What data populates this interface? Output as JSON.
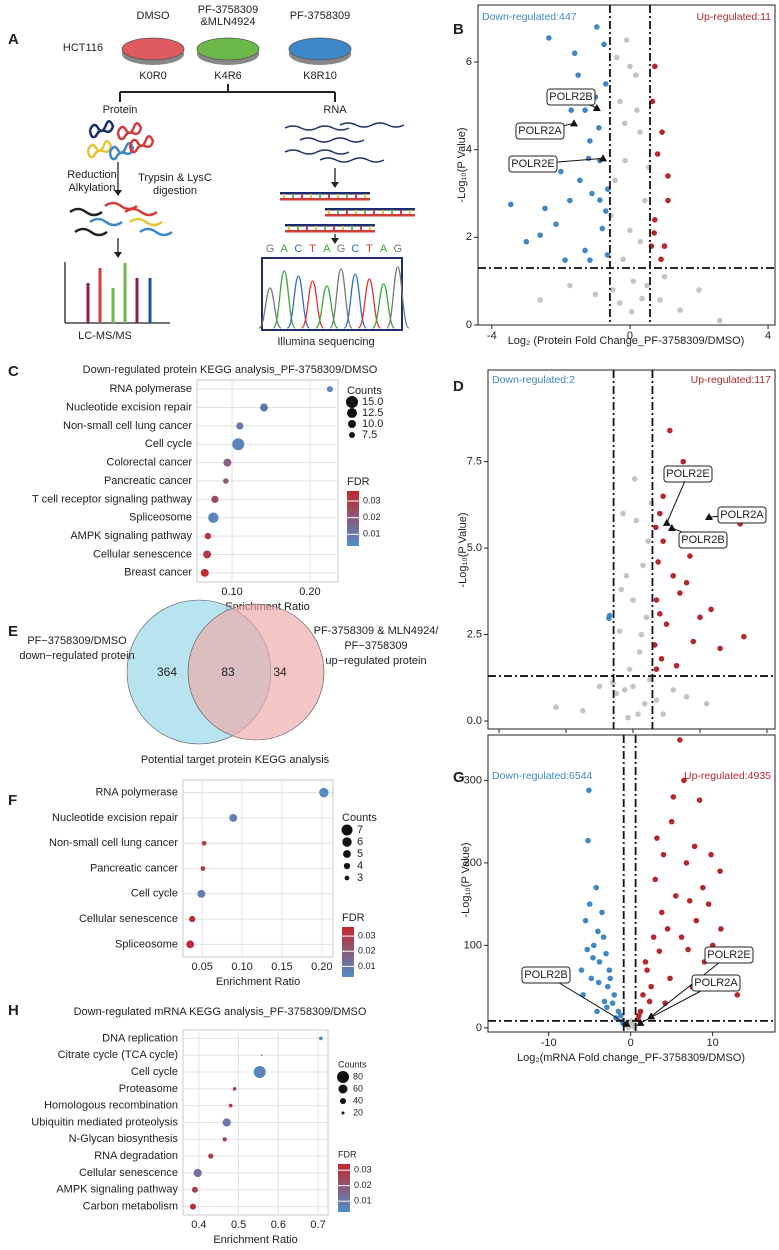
{
  "diagram": {
    "panel": "A",
    "treatments": [
      [
        "DMSO"
      ],
      [
        "PF-3758309",
        "&MLN4924"
      ],
      [
        "PF-3758309"
      ]
    ],
    "cell_line": "HCT116",
    "labels": [
      "K0R0",
      "K4R6",
      "K8R10"
    ],
    "protein": "Protein",
    "rna": "RNA",
    "step_left": [
      "Reduction",
      "Alkylation"
    ],
    "step_right": [
      "Trypsin & LysC",
      "digestion"
    ],
    "protein_method": "LC-MS/MS",
    "rna_method": "Illumina sequencing",
    "sequence": [
      "G",
      "A",
      "C",
      "T",
      "A",
      "G",
      "C",
      "T",
      "A",
      "G"
    ]
  },
  "chart_data": [
    {
      "type": "scatter",
      "panel": "B",
      "xlabel": "Log₂ (Protein Fold Change_PF-3758309/DMSO)",
      "ylabel": "-Log₁₀(P Value)",
      "xlim": [
        -4.4,
        4.2
      ],
      "ylim": [
        0,
        7.3
      ],
      "xticks": [
        -4,
        0,
        4
      ],
      "yticks": [
        0,
        2,
        4,
        6
      ],
      "vlines": [
        -0.58,
        0.58
      ],
      "hline": 1.3,
      "annotations": [
        {
          "text": "Down-regulated:447",
          "color": "#3f88c5"
        },
        {
          "text": "Up-regulated:11",
          "color": "#b3282d"
        }
      ],
      "series": [
        {
          "color": "#c4c4c4",
          "x": [
            -0.1,
            -0.38,
            0.17,
            -0.29,
            0.29,
            -0.14,
            -0.43,
            0.43,
            0.0,
            -0.2,
            0.1,
            0.35,
            -0.5,
            0.5,
            0.05,
            -0.3,
            0.2,
            -2.6,
            2.0,
            1.45,
            -1.74,
            0.87,
            2.6,
            -1.0,
            1.0,
            -0.55,
            0.55,
            0.0,
            -0.15,
            0.3
          ],
          "values": [
            6.5,
            6.1,
            5.7,
            5.1,
            4.4,
            3.75,
            3.3,
            2.84,
            2.16,
            1.5,
            1.0,
            0.6,
            0.8,
            0.9,
            0.3,
            0.5,
            4.9,
            0.57,
            0.8,
            0.34,
            0.9,
            0.57,
            0.1,
            0.7,
            1.1,
            2.5,
            3.6,
            5.9,
            4.6,
            1.9
          ]
        },
        {
          "color": "#3f88c5",
          "x": [
            -3.45,
            -3.0,
            -2.35,
            -1.6,
            -0.96,
            -0.75,
            -1.5,
            -2.46,
            -2.14,
            -2.0,
            -1.7,
            -1.16,
            -0.87,
            -1.3,
            -1.0,
            -0.64,
            -1.74,
            -1.45,
            -1.88,
            -1.16,
            -2.6,
            -0.87,
            -1.3,
            -0.7,
            -0.8,
            -1.1,
            -0.65,
            -0.9,
            -1.2,
            -0.7
          ],
          "values": [
            2.75,
            1.9,
            6.55,
            6.2,
            6.8,
            6.4,
            5.7,
            2.66,
            2.3,
            3.5,
            4.9,
            4.2,
            2.85,
            1.7,
            5.2,
            3.1,
            2.84,
            3.3,
            1.48,
            1.48,
            2.05,
            3.75,
            4.9,
            5.5,
            2.2,
            3.0,
            1.6,
            4.5,
            3.8,
            2.6
          ]
        },
        {
          "color": "#b3282d",
          "x": [
            0.72,
            0.93,
            1.1,
            0.72,
            0.62,
            1.0,
            1.1,
            0.8,
            0.65,
            0.9,
            0.7
          ],
          "values": [
            5.9,
            4.4,
            3.4,
            2.4,
            1.8,
            1.8,
            2.84,
            3.9,
            5.1,
            1.5,
            2.1
          ]
        }
      ],
      "labels": [
        {
          "text": "POLR2B",
          "x": -0.96,
          "y": 4.95
        },
        {
          "text": "POLR2A",
          "x": -1.62,
          "y": 4.6
        },
        {
          "text": "POLR2E",
          "x": -0.78,
          "y": 3.8
        }
      ]
    },
    {
      "type": "dot",
      "panel": "C",
      "title": "Down-regulated protein KEGG analysis_PF-3758309/DMSO",
      "categories": [
        "RNA polymerase",
        "Nucleotide excision repair",
        "Non-small cell lung cancer",
        "Cell cycle",
        "Colorectal cancer",
        "Pancreatic cancer",
        "T cell receptor signaling pathway",
        "Spliceosome",
        "AMPK signaling pathway",
        "Cellular senescence",
        "Breast cancer"
      ],
      "values": [
        0.2256,
        0.141,
        0.11,
        0.108,
        0.094,
        0.092,
        0.078,
        0.076,
        0.069,
        0.068,
        0.065
      ],
      "counts": [
        7.5,
        10,
        9,
        15,
        10,
        7,
        9,
        13,
        8,
        10,
        10
      ],
      "fdr": [
        0.006,
        0.01,
        0.01,
        0.006,
        0.018,
        0.02,
        0.025,
        0.006,
        0.032,
        0.03,
        0.034
      ],
      "xlabel": "Enrichment Ratio",
      "xlim": [
        0.055,
        0.236
      ],
      "xticks": [
        {
          "value": 0.1,
          "label": "0.10"
        },
        {
          "value": 0.2,
          "label": "0.20"
        }
      ],
      "size_legend": {
        "title": "Counts",
        "values": [
          {
            "value": 15,
            "label": "15.0"
          },
          12.5,
          {
            "value": 10,
            "label": "10.0"
          },
          7.5
        ]
      },
      "color_legend": {
        "title": "FDR",
        "lim": [
          0.003,
          0.036
        ],
        "ticks": [
          0.01,
          0.02,
          0.03
        ],
        "colors": [
          "#4f8fca",
          "#c3272b"
        ]
      }
    },
    {
      "type": "scatter",
      "panel": "D",
      "xlabel": [
        "Log₂ (Protein Fold change_PF-3758309",
        "&MLN4924/PF-3758309)"
      ],
      "ylabel": "-Log₁₀(P Value)",
      "xlim": [
        -4.33,
        4.24
      ],
      "ylim": [
        -0.23,
        10.15
      ],
      "xticks": [
        -4,
        -2,
        0,
        2,
        4
      ],
      "yticks": [
        {
          "value": 0,
          "label": "0.0"
        },
        2.5,
        {
          "value": 5,
          "label": "5.0"
        },
        7.5
      ],
      "vlines": [
        -0.58,
        0.58
      ],
      "hline": 1.3,
      "annotations": [
        {
          "text": "Down-regulated:2",
          "color": "#3f88c5"
        },
        {
          "text": "Up-regulated:117",
          "color": "#b3282d"
        }
      ],
      "series": [
        {
          "color": "#c4c4c4",
          "x": [
            -0.3,
            0.1,
            0.3,
            -0.2,
            0.0,
            0.4,
            -0.4,
            0.2,
            -0.1,
            0.5,
            -0.5,
            0.35,
            0.15,
            -0.25,
            0.05,
            -1.5,
            1.2,
            2.2,
            -1.0,
            0.9,
            -2.3,
            1.6,
            -0.6,
            0.7,
            0.45,
            -0.35,
            0.25,
            0.0,
            -0.15,
            0.55
          ],
          "values": [
            6.0,
            5.8,
            4.5,
            4.2,
            3.5,
            3.0,
            2.6,
            2.0,
            1.5,
            1.2,
            0.8,
            0.5,
            0.2,
            0.9,
            7.0,
            0.3,
            0.9,
            0.5,
            1.0,
            0.2,
            0.4,
            0.7,
            1.1,
            0.6,
            5.2,
            3.8,
            2.5,
            1.0,
            0.1,
            6.3
          ]
        },
        {
          "color": "#3f88c5",
          "x": [
            -0.72,
            -0.7
          ],
          "values": [
            2.97,
            3.05
          ]
        },
        {
          "color": "#b3282d",
          "x": [
            1.1,
            1.7,
            2.33,
            3.31,
            3.2,
            1.5,
            0.8,
            0.9,
            1.2,
            0.7,
            0.65,
            1.0,
            1.4,
            0.75,
            0.85,
            1.8,
            2.0,
            1.3,
            0.7,
            0.9,
            1.6,
            0.68,
            1.05,
            2.6,
            0.8
          ],
          "values": [
            8.4,
            4.77,
            3.23,
            2.44,
            5.7,
            7.5,
            6.0,
            5.2,
            4.2,
            3.5,
            2.2,
            2.8,
            3.7,
            4.6,
            1.8,
            2.3,
            3.0,
            1.6,
            1.5,
            6.5,
            4.0,
            5.6,
            7.0,
            2.1,
            3.1
          ]
        }
      ],
      "labels": [
        {
          "text": "POLR2E",
          "x": 1.01,
          "y": 5.73
        },
        {
          "text": "POLR2A",
          "x": 2.27,
          "y": 5.9
        },
        {
          "text": "POLR2B",
          "x": 1.16,
          "y": 5.58
        }
      ]
    },
    {
      "type": "venn",
      "panel": "E",
      "sets": [
        {
          "label": [
            "PF−3758309/DMSO",
            "down−regulated protein"
          ],
          "color": "#9fdbe8"
        },
        {
          "label": [
            "PF-3758309 & MLN4924/",
            "PF−3758309",
            "up−regulated protein"
          ],
          "color": "#f0a7a7"
        }
      ],
      "values": [
        364,
        83,
        34
      ]
    },
    {
      "type": "dot",
      "panel": "F",
      "title": "Potential target protein KEGG analysis",
      "categories": [
        "RNA polymerase",
        "Nucleotide excision repair",
        "Non-small cell lung cancer",
        "Pancreatic cancer",
        "Cell cycle",
        "Cellular senescence",
        "Spliceosome"
      ],
      "values": [
        0.2025,
        0.089,
        0.0525,
        0.051,
        0.049,
        0.0375,
        0.035
      ],
      "counts": [
        6,
        5,
        3,
        3,
        5,
        4,
        5
      ],
      "fdr": [
        0.004,
        0.008,
        0.03,
        0.031,
        0.008,
        0.034,
        0.033
      ],
      "xlabel": "Enrichment Ratio",
      "xlim": [
        0.026,
        0.214
      ],
      "xticks": [
        {
          "value": 0.05,
          "label": "0.05"
        },
        {
          "value": 0.1,
          "label": "0.10"
        },
        0.15,
        {
          "value": 0.2,
          "label": "0.20"
        }
      ],
      "size_legend": {
        "title": "Counts",
        "values": [
          7,
          6,
          5,
          4,
          3
        ]
      },
      "color_legend": {
        "title": "FDR",
        "lim": [
          0.003,
          0.036
        ],
        "ticks": [
          0.01,
          0.02,
          0.03
        ],
        "colors": [
          "#4f8fca",
          "#c3272b"
        ]
      }
    },
    {
      "type": "scatter",
      "panel": "G",
      "xlabel": "Log₂(mRNA Fold change_PF-3758309/DMSO)",
      "ylabel": "-Log₁₀(P Value)",
      "xlim": [
        -17.4,
        17.6
      ],
      "ylim": [
        -5,
        355
      ],
      "xticks": [
        -10,
        0,
        10
      ],
      "yticks": [
        0,
        100,
        200,
        300
      ],
      "vlines": [
        -0.85,
        0.6
      ],
      "hline": 8.5,
      "annotations": [
        {
          "text": "Down-regulated:6544",
          "color": "#3f88c5"
        },
        {
          "text": "Up-regulated:4935",
          "color": "#b3282d"
        }
      ],
      "series": [
        {
          "color": "#c4c4c4",
          "x": [
            -0.5,
            0.3,
            -0.2,
            0.5,
            0,
            -0.7,
            0.4,
            -0.3
          ],
          "values": [
            3,
            2,
            6,
            1,
            8,
            4,
            5,
            0.5
          ]
        },
        {
          "color": "#3f88c5",
          "x": [
            -5,
            -5.1,
            -5.2,
            -4,
            -3.2,
            -4.5,
            -3.8,
            -2.5,
            -2,
            -1.5,
            -6,
            -5.5,
            -4.2,
            -3,
            -2.8,
            -1.2,
            -3.5,
            -4.8,
            -5.8,
            -2.2,
            -1,
            -3.3,
            -4.6,
            -2.6,
            -1.8,
            -3.9,
            -5.3,
            -0.9,
            -4.1,
            -2.9
          ],
          "values": [
            150,
            288,
            227,
            117,
            32,
            100,
            80,
            60,
            40,
            20,
            70,
            130,
            170,
            90,
            50,
            15,
            140,
            60,
            40,
            30,
            8,
            110,
            85,
            70,
            12,
            55,
            95,
            5,
            20,
            25
          ]
        },
        {
          "color": "#b3282d",
          "x": [
            6,
            8.4,
            10.9,
            7.2,
            3.5,
            2.3,
            9,
            5,
            4,
            3,
            6.5,
            7.8,
            8,
            11,
            12,
            4.5,
            2,
            1.5,
            1,
            5.5,
            9.5,
            10,
            3.8,
            6.8,
            7.5,
            4.8,
            2.8,
            1.2,
            8.8,
            13,
            5.2,
            3.2,
            6.2,
            9.8,
            2.5,
            7,
            4.2,
            11.5,
            1.8,
            0.9
          ],
          "values": [
            349,
            276,
            190,
            154,
            93,
            32,
            80,
            250,
            210,
            180,
            300,
            220,
            130,
            120,
            60,
            120,
            70,
            40,
            15,
            160,
            150,
            100,
            140,
            200,
            50,
            60,
            110,
            20,
            170,
            40,
            280,
            230,
            110,
            210,
            50,
            95,
            30,
            90,
            80,
            10
          ]
        }
      ],
      "labels": [
        {
          "text": "POLR2B",
          "x": -0.5,
          "y": 5
        },
        {
          "text": "POLR2E",
          "x": 2.5,
          "y": 14
        },
        {
          "text": "POLR2A",
          "x": 1.2,
          "y": 6
        }
      ]
    },
    {
      "type": "dot",
      "panel": "H",
      "title": "Down-regulated mRNA KEGG analysis_PF-3758309/DMSO",
      "categories": [
        "DNA replication",
        "Citrate cycle (TCA cycle)",
        "Cell cycle",
        "Proteasome",
        "Homologous recombination",
        "Ubiquitin mediated proteolysis",
        "N-Glycan biosynthesis",
        "RNA degradation",
        "Cellular senescence",
        "AMPK signaling pathway",
        "Carbon metabolism"
      ],
      "values": [
        0.707,
        0.558,
        0.553,
        0.49,
        0.48,
        0.47,
        0.465,
        0.43,
        0.397,
        0.39,
        0.385
      ],
      "counts": [
        25,
        10,
        80,
        25,
        25,
        55,
        30,
        35,
        55,
        40,
        40
      ],
      "fdr": [
        0.006,
        0.012,
        0.006,
        0.025,
        0.029,
        0.01,
        0.024,
        0.027,
        0.012,
        0.026,
        0.033
      ],
      "xlabel": "Enrichment Ratio",
      "xlim": [
        0.36,
        0.725
      ],
      "xticks": [
        0.4,
        0.5,
        0.6,
        0.7
      ],
      "size_legend": {
        "title": "Counts",
        "values": [
          80,
          60,
          40,
          20
        ]
      },
      "color_legend": {
        "title": "FDR",
        "lim": [
          0.003,
          0.034
        ],
        "ticks": [
          0.01,
          0.02,
          0.03
        ],
        "colors": [
          "#4f8fca",
          "#c3272b"
        ]
      }
    }
  ]
}
